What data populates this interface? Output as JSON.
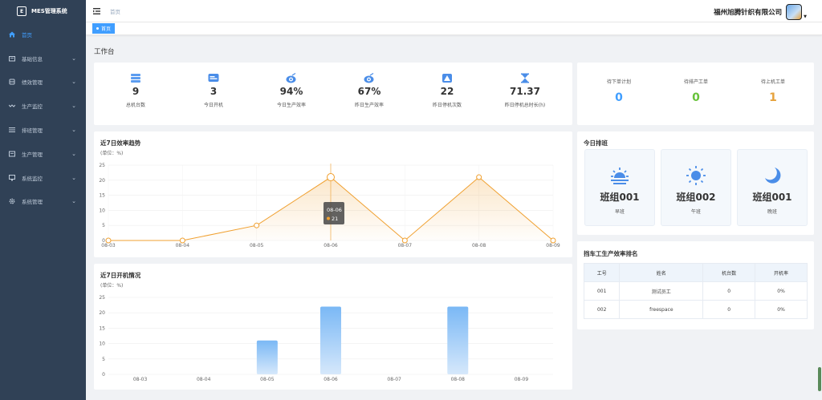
{
  "app": {
    "title": "MES管理系统"
  },
  "sidebar": {
    "items": [
      {
        "label": "首页",
        "icon": "home-icon",
        "active": true
      },
      {
        "label": "基础信息",
        "icon": "folder-icon"
      },
      {
        "label": "绩效管理",
        "icon": "layers-icon"
      },
      {
        "label": "生产监控",
        "icon": "wave-icon"
      },
      {
        "label": "排班管理",
        "icon": "list-icon"
      },
      {
        "label": "生产管理",
        "icon": "box-icon"
      },
      {
        "label": "系统监控",
        "icon": "monitor-icon"
      },
      {
        "label": "系统管理",
        "icon": "gear-icon"
      }
    ]
  },
  "navbar": {
    "breadcrumb": "首页",
    "company": "福州旭腾针织有限公司"
  },
  "tags": {
    "active": "首页"
  },
  "page": {
    "title": "工作台"
  },
  "stats": [
    {
      "value": "9",
      "label": "总机台数",
      "icon": "server-icon"
    },
    {
      "value": "3",
      "label": "今日开机",
      "icon": "device-icon"
    },
    {
      "value": "94%",
      "label": "今日生产效率",
      "icon": "efficiency-icon"
    },
    {
      "value": "67%",
      "label": "昨日生产效率",
      "icon": "efficiency-icon"
    },
    {
      "value": "22",
      "label": "昨日停机次数",
      "icon": "warning-icon"
    },
    {
      "value": "71.37",
      "label": "昨日停机总时长(h)",
      "icon": "hourglass-icon"
    }
  ],
  "pending": [
    {
      "label": "待下单计划",
      "value": "0",
      "color": "#409eff"
    },
    {
      "label": "待排产工单",
      "value": "0",
      "color": "#67c23a"
    },
    {
      "label": "待上机工单",
      "value": "1",
      "color": "#e6a23c"
    }
  ],
  "efficiency_chart": {
    "title": "近7日效率趋势",
    "subtitle": "(单位：%)",
    "tooltip": {
      "date": "08-06",
      "value": "21"
    }
  },
  "running_chart": {
    "title": "近7日开机情况",
    "subtitle": "(单位：%)"
  },
  "schedule": {
    "title": "今日排班",
    "shifts": [
      {
        "name": "班组001",
        "period": "早班",
        "icon": "sunrise-icon"
      },
      {
        "name": "班组002",
        "period": "午班",
        "icon": "sun-icon"
      },
      {
        "name": "班组001",
        "period": "晚班",
        "icon": "moon-icon"
      }
    ]
  },
  "ranking": {
    "title": "挡车工生产效率排名",
    "columns": [
      "工号",
      "姓名",
      "机台数",
      "开机率"
    ],
    "rows": [
      [
        "001",
        "测试员工",
        "0",
        "0%"
      ],
      [
        "002",
        "freespace",
        "0",
        "0%"
      ]
    ]
  },
  "chart_data": [
    {
      "type": "area",
      "title": "近7日效率趋势",
      "ylabel": "(单位：%)",
      "x": [
        "08-03",
        "08-04",
        "08-05",
        "08-06",
        "08-07",
        "08-08",
        "08-09"
      ],
      "values": [
        0,
        0,
        5,
        21,
        0,
        21,
        0
      ],
      "ylim": [
        0,
        25
      ],
      "yticks": [
        0,
        5,
        10,
        15,
        20,
        25
      ],
      "color": "#f0a030"
    },
    {
      "type": "bar",
      "title": "近7日开机情况",
      "ylabel": "(单位：%)",
      "categories": [
        "08-03",
        "08-04",
        "08-05",
        "08-06",
        "08-07",
        "08-08",
        "08-09"
      ],
      "values": [
        0,
        0,
        11,
        22,
        0,
        22,
        0
      ],
      "ylim": [
        0,
        25
      ],
      "yticks": [
        0,
        5,
        10,
        15,
        20,
        25
      ],
      "color": "#7ab8f5"
    }
  ]
}
